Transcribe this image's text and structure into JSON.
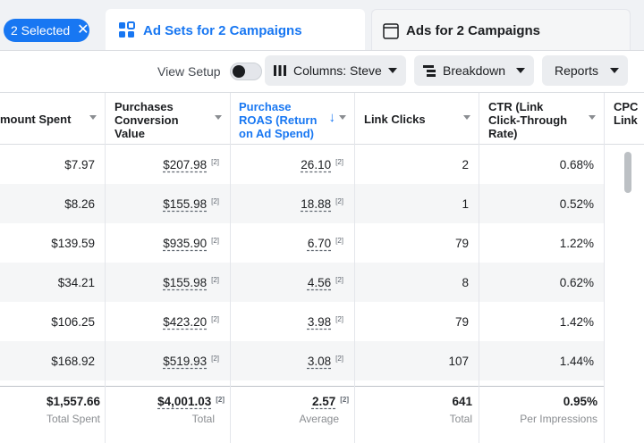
{
  "selection": {
    "label": "2 Selected",
    "clear": "✕"
  },
  "tabs": [
    {
      "label": "Ad Sets for 2 Campaigns",
      "icon": "grid-icon",
      "active": true
    },
    {
      "label": "Ads for 2 Campaigns",
      "icon": "ad-frame-icon",
      "active": false
    }
  ],
  "toolbar": {
    "view_setup": "View Setup",
    "columns": "Columns: Steve",
    "breakdown": "Breakdown",
    "reports": "Reports"
  },
  "columns": [
    {
      "label": "mount Spent"
    },
    {
      "label": "Purchases Conversion Value"
    },
    {
      "label": "Purchase ROAS (Return on Ad Spend)"
    },
    {
      "label": "Link Clicks"
    },
    {
      "label": "CTR (Link Click-Through Rate)"
    },
    {
      "label": "CPC Link"
    }
  ],
  "rows": [
    {
      "spent": "$7.97",
      "conv_value": "$207.98",
      "roas": "26.10",
      "clicks": "2",
      "ctr": "0.68%"
    },
    {
      "spent": "$8.26",
      "conv_value": "$155.98",
      "roas": "18.88",
      "clicks": "1",
      "ctr": "0.52%"
    },
    {
      "spent": "$139.59",
      "conv_value": "$935.90",
      "roas": "6.70",
      "clicks": "79",
      "ctr": "1.22%"
    },
    {
      "spent": "$34.21",
      "conv_value": "$155.98",
      "roas": "4.56",
      "clicks": "8",
      "ctr": "0.62%"
    },
    {
      "spent": "$106.25",
      "conv_value": "$423.20",
      "roas": "3.98",
      "clicks": "79",
      "ctr": "1.42%"
    },
    {
      "spent": "$168.92",
      "conv_value": "$519.93",
      "roas": "3.08",
      "clicks": "107",
      "ctr": "1.44%"
    }
  ],
  "footnote": "[2]",
  "totals": {
    "spent": {
      "value": "$1,557.66",
      "label": "Total Spent"
    },
    "conv_value": {
      "value": "$4,001.03",
      "label": "Total"
    },
    "roas": {
      "value": "2.57",
      "label": "Average"
    },
    "clicks": {
      "value": "641",
      "label": "Total"
    },
    "ctr": {
      "value": "0.95%",
      "label": "Per Impressions"
    }
  },
  "colors": {
    "accent": "#1877f2",
    "alt_row": "#f5f6f7"
  }
}
